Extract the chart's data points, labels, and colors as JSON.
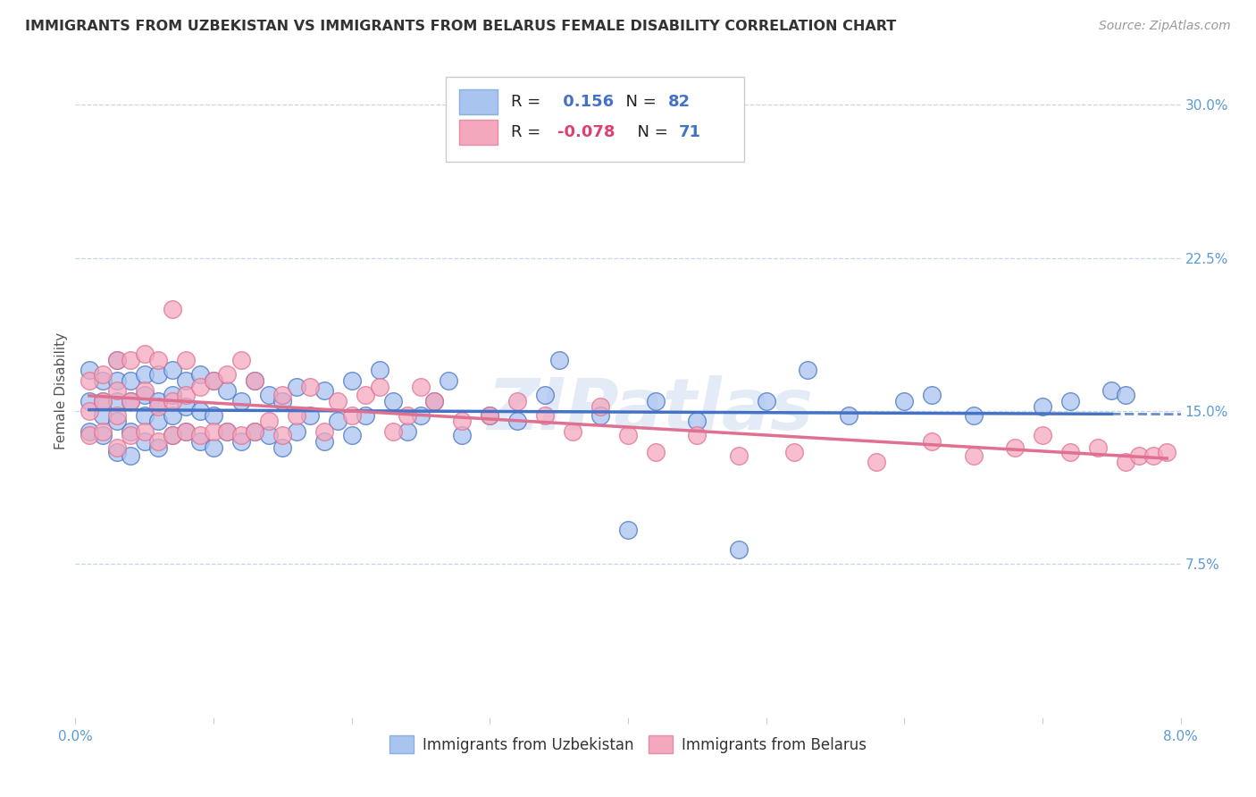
{
  "title": "IMMIGRANTS FROM UZBEKISTAN VS IMMIGRANTS FROM BELARUS FEMALE DISABILITY CORRELATION CHART",
  "source": "Source: ZipAtlas.com",
  "ylabel": "Female Disability",
  "yticks": [
    "7.5%",
    "15.0%",
    "22.5%",
    "30.0%"
  ],
  "ytick_vals": [
    0.075,
    0.15,
    0.225,
    0.3
  ],
  "xmin": 0.0,
  "xmax": 0.08,
  "ymin": 0.0,
  "ymax": 0.32,
  "color_uzbek": "#aac4f0",
  "color_belarus": "#f4a8be",
  "color_uzbek_line": "#4472c4",
  "color_belarus_line": "#e07090",
  "uzbek_label": "Immigrants from Uzbekistan",
  "belarus_label": "Immigrants from Belarus",
  "watermark": "ZIPatlas",
  "uzbek_scatter_x": [
    0.001,
    0.001,
    0.001,
    0.002,
    0.002,
    0.002,
    0.002,
    0.003,
    0.003,
    0.003,
    0.003,
    0.003,
    0.004,
    0.004,
    0.004,
    0.004,
    0.005,
    0.005,
    0.005,
    0.005,
    0.006,
    0.006,
    0.006,
    0.006,
    0.007,
    0.007,
    0.007,
    0.007,
    0.008,
    0.008,
    0.008,
    0.009,
    0.009,
    0.009,
    0.01,
    0.01,
    0.01,
    0.011,
    0.011,
    0.012,
    0.012,
    0.013,
    0.013,
    0.014,
    0.014,
    0.015,
    0.015,
    0.016,
    0.016,
    0.017,
    0.018,
    0.018,
    0.019,
    0.02,
    0.02,
    0.021,
    0.022,
    0.023,
    0.024,
    0.025,
    0.026,
    0.027,
    0.028,
    0.03,
    0.032,
    0.034,
    0.035,
    0.038,
    0.04,
    0.042,
    0.045,
    0.048,
    0.05,
    0.053,
    0.056,
    0.06,
    0.062,
    0.065,
    0.07,
    0.072,
    0.075,
    0.076
  ],
  "uzbek_scatter_y": [
    0.14,
    0.155,
    0.17,
    0.138,
    0.148,
    0.155,
    0.165,
    0.13,
    0.145,
    0.155,
    0.165,
    0.175,
    0.128,
    0.14,
    0.155,
    0.165,
    0.135,
    0.148,
    0.158,
    0.168,
    0.132,
    0.145,
    0.155,
    0.168,
    0.138,
    0.148,
    0.158,
    0.17,
    0.14,
    0.152,
    0.165,
    0.135,
    0.15,
    0.168,
    0.132,
    0.148,
    0.165,
    0.14,
    0.16,
    0.135,
    0.155,
    0.14,
    0.165,
    0.138,
    0.158,
    0.132,
    0.155,
    0.14,
    0.162,
    0.148,
    0.135,
    0.16,
    0.145,
    0.138,
    0.165,
    0.148,
    0.17,
    0.155,
    0.14,
    0.148,
    0.155,
    0.165,
    0.138,
    0.148,
    0.145,
    0.158,
    0.175,
    0.148,
    0.092,
    0.155,
    0.145,
    0.082,
    0.155,
    0.17,
    0.148,
    0.155,
    0.158,
    0.148,
    0.152,
    0.155,
    0.16,
    0.158
  ],
  "belarus_scatter_x": [
    0.001,
    0.001,
    0.001,
    0.002,
    0.002,
    0.002,
    0.003,
    0.003,
    0.003,
    0.003,
    0.004,
    0.004,
    0.004,
    0.005,
    0.005,
    0.005,
    0.006,
    0.006,
    0.006,
    0.007,
    0.007,
    0.007,
    0.008,
    0.008,
    0.008,
    0.009,
    0.009,
    0.01,
    0.01,
    0.011,
    0.011,
    0.012,
    0.012,
    0.013,
    0.013,
    0.014,
    0.015,
    0.015,
    0.016,
    0.017,
    0.018,
    0.019,
    0.02,
    0.021,
    0.022,
    0.023,
    0.024,
    0.025,
    0.026,
    0.028,
    0.03,
    0.032,
    0.034,
    0.036,
    0.038,
    0.04,
    0.042,
    0.045,
    0.048,
    0.052,
    0.058,
    0.062,
    0.065,
    0.068,
    0.07,
    0.072,
    0.074,
    0.076,
    0.077,
    0.078,
    0.079
  ],
  "belarus_scatter_y": [
    0.138,
    0.15,
    0.165,
    0.14,
    0.155,
    0.168,
    0.132,
    0.148,
    0.16,
    0.175,
    0.138,
    0.155,
    0.175,
    0.14,
    0.16,
    0.178,
    0.135,
    0.152,
    0.175,
    0.138,
    0.155,
    0.2,
    0.14,
    0.158,
    0.175,
    0.138,
    0.162,
    0.14,
    0.165,
    0.14,
    0.168,
    0.138,
    0.175,
    0.14,
    0.165,
    0.145,
    0.138,
    0.158,
    0.148,
    0.162,
    0.14,
    0.155,
    0.148,
    0.158,
    0.162,
    0.14,
    0.148,
    0.162,
    0.155,
    0.145,
    0.148,
    0.155,
    0.148,
    0.14,
    0.152,
    0.138,
    0.13,
    0.138,
    0.128,
    0.13,
    0.125,
    0.135,
    0.128,
    0.132,
    0.138,
    0.13,
    0.132,
    0.125,
    0.128,
    0.128,
    0.13
  ]
}
